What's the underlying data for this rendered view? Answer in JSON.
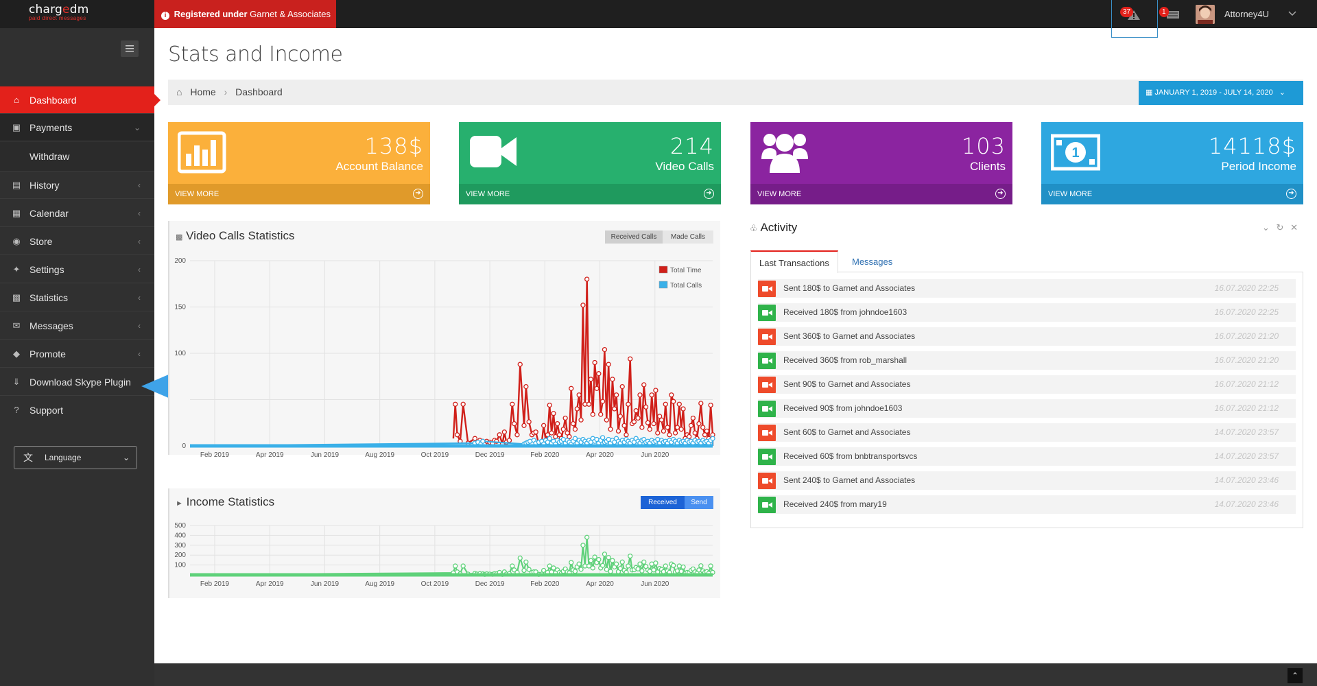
{
  "app": {
    "logo_text_a": "charg",
    "logo_text_accent": "e",
    "logo_text_b": "dm",
    "logo_tagline": "paid direct messages",
    "registered_prefix": "Registered under",
    "registered_org": "Garnet & Associates",
    "notifications_count": "37",
    "messages_count": "1",
    "user_name": "Attorney4U"
  },
  "sidebar": {
    "items": [
      {
        "label": "Dashboard",
        "icon": "home-icon"
      },
      {
        "label": "Payments",
        "icon": "money-icon"
      },
      {
        "label": "Withdraw"
      },
      {
        "label": "History",
        "icon": "book-icon"
      },
      {
        "label": "Calendar",
        "icon": "calendar-icon"
      },
      {
        "label": "Store",
        "icon": "play-circle-icon"
      },
      {
        "label": "Settings",
        "icon": "wrench-icon"
      },
      {
        "label": "Statistics",
        "icon": "bar-chart-icon"
      },
      {
        "label": "Messages",
        "icon": "envelope-icon"
      },
      {
        "label": "Promote",
        "icon": "camera-icon"
      },
      {
        "label": "Download Skype Plugin",
        "icon": "download-icon"
      },
      {
        "label": "Support",
        "icon": "question-icon"
      }
    ],
    "language_label": "Language"
  },
  "page": {
    "title": "Stats and Income",
    "breadcrumb": [
      "Home",
      "Dashboard"
    ],
    "date_range": "JANUARY 1, 2019 - JULY 14, 2020"
  },
  "tiles": [
    {
      "value": "138$",
      "label": "Account Balance",
      "footer": "VIEW MORE",
      "color": "#fbb03b",
      "footer_color": "#e09a2a",
      "icon": "bar-chart-icon"
    },
    {
      "value": "214",
      "label": "Video Calls",
      "footer": "VIEW MORE",
      "color": "#27b06e",
      "footer_color": "#1f9a5e",
      "icon": "video-camera-icon"
    },
    {
      "value": "103",
      "label": "Clients",
      "footer": "VIEW MORE",
      "color": "#8b24a0",
      "footer_color": "#761d89",
      "icon": "users-icon"
    },
    {
      "value": "14118$",
      "label": "Period Income",
      "footer": "VIEW MORE",
      "color": "#2ea7e0",
      "footer_color": "#2090c6",
      "icon": "dollar-bill-icon"
    }
  ],
  "video_calls_chart": {
    "title": "Video Calls Statistics",
    "toggle": [
      "Received Calls",
      "Made Calls"
    ],
    "legend": [
      "Total Time",
      "Total Calls"
    ]
  },
  "income_chart": {
    "title": "Income Statistics",
    "toggle": [
      "Received",
      "Send"
    ]
  },
  "activity": {
    "title": "Activity",
    "tabs": [
      "Last Transactions",
      "Messages"
    ],
    "rows": [
      {
        "text": "Sent 180$ to Garnet and Associates",
        "time": "16.07.2020 22:25",
        "type": "sent"
      },
      {
        "text": "Received 180$ from johndoe1603",
        "time": "16.07.2020 22:25",
        "type": "received"
      },
      {
        "text": "Sent 360$ to Garnet and Associates",
        "time": "16.07.2020 21:20",
        "type": "sent"
      },
      {
        "text": "Received 360$ from rob_marshall",
        "time": "16.07.2020 21:20",
        "type": "received"
      },
      {
        "text": "Sent 90$ to Garnet and Associates",
        "time": "16.07.2020 21:12",
        "type": "sent"
      },
      {
        "text": "Received 90$ from johndoe1603",
        "time": "16.07.2020 21:12",
        "type": "received"
      },
      {
        "text": "Sent 60$ to Garnet and Associates",
        "time": "14.07.2020 23:57",
        "type": "sent"
      },
      {
        "text": "Received 60$ from bnbtransportsvcs",
        "time": "14.07.2020 23:57",
        "type": "received"
      },
      {
        "text": "Sent 240$ to Garnet and Associates",
        "time": "14.07.2020 23:46",
        "type": "sent"
      },
      {
        "text": "Received 240$ from mary19",
        "time": "14.07.2020 23:46",
        "type": "received"
      }
    ]
  },
  "colors": {
    "sent": "#ee4b2b",
    "received": "#2fb34a",
    "total_time": "#d0201a",
    "total_calls": "#3ab0e8",
    "income": "#5fd17a",
    "accent": "#e3211b",
    "arrow": "#3fa3e8"
  },
  "chart_data": [
    {
      "type": "line",
      "title": "Video Calls Statistics",
      "x_ticks": [
        "Feb 2019",
        "Apr 2019",
        "Jun 2019",
        "Aug 2019",
        "Oct 2019",
        "Dec 2019",
        "Feb 2020",
        "Apr 2020",
        "Jun 2020"
      ],
      "ylim": [
        0,
        200
      ],
      "y_ticks": [
        0,
        50,
        100,
        150,
        200
      ],
      "y_tick_labels": [
        "0",
        "",
        "100",
        "150",
        "200"
      ],
      "legend": [
        "Total Time",
        "Total Calls"
      ],
      "grid": true,
      "series": [
        {
          "name": "Total Time",
          "x": [
            268,
            270,
            272,
            275,
            278,
            283,
            290,
            292,
            295,
            298,
            300,
            302,
            305,
            308,
            310,
            312,
            315,
            318,
            320,
            322,
            325,
            328,
            330,
            333,
            336,
            340,
            342,
            345,
            348,
            350,
            352,
            355,
            358,
            360,
            362,
            364,
            366,
            368,
            370,
            372,
            374,
            376,
            378,
            380,
            382,
            384,
            386,
            388,
            390,
            392,
            394,
            396,
            398,
            400,
            402,
            404,
            406,
            408,
            410,
            412,
            414,
            416,
            418,
            420,
            422,
            424,
            426,
            428,
            430,
            432,
            434,
            436,
            438,
            440,
            442,
            444,
            446,
            448,
            450,
            452,
            454,
            456,
            458,
            460,
            462,
            464,
            466,
            468,
            470,
            472,
            474,
            476,
            478,
            480,
            482,
            484,
            486,
            488,
            490,
            492,
            494,
            496,
            498,
            500,
            502,
            504,
            506,
            508,
            510,
            512,
            514,
            516,
            518,
            520,
            522,
            524,
            526,
            528,
            530,
            532
          ],
          "values": [
            8,
            45,
            12,
            5,
            45,
            3,
            8,
            4,
            6,
            5,
            2,
            5,
            4,
            3,
            6,
            5,
            12,
            2,
            15,
            4,
            6,
            45,
            24,
            12,
            88,
            22,
            64,
            26,
            12,
            14,
            15,
            2,
            4,
            22,
            6,
            12,
            44,
            14,
            35,
            10,
            24,
            12,
            8,
            18,
            30,
            14,
            10,
            62,
            24,
            18,
            40,
            55,
            28,
            152,
            45,
            180,
            45,
            72,
            34,
            90,
            62,
            78,
            34,
            48,
            104,
            28,
            88,
            18,
            72,
            40,
            55,
            16,
            32,
            64,
            22,
            12,
            45,
            94,
            24,
            26,
            38,
            30,
            55,
            20,
            66,
            42,
            25,
            18,
            55,
            24,
            60,
            14,
            32,
            28,
            16,
            45,
            20,
            12,
            55,
            48,
            14,
            20,
            45,
            18,
            40,
            8,
            12,
            10,
            22,
            30,
            14,
            8,
            24,
            46,
            20,
            12,
            16,
            8,
            44,
            12
          ]
        },
        {
          "name": "Total Calls",
          "x": [
            0,
            290,
            293,
            296,
            298,
            340,
            342,
            344,
            346,
            350,
            352,
            355,
            358,
            360,
            362,
            364,
            366,
            368,
            370,
            372,
            374,
            376,
            378,
            380,
            382,
            384,
            386,
            388,
            390,
            392,
            394,
            396,
            398,
            400,
            402,
            404,
            406,
            408,
            410,
            412,
            414,
            416,
            418,
            420,
            422,
            424,
            426,
            428,
            430,
            432,
            434,
            436,
            438,
            440,
            442,
            444,
            446,
            448,
            450,
            452,
            454,
            456,
            458,
            460,
            462,
            464,
            466,
            468,
            470,
            472,
            474,
            476,
            478,
            480,
            482,
            484,
            486,
            488,
            490,
            492,
            494,
            496,
            498,
            500,
            502,
            504,
            506,
            508,
            510,
            512,
            514,
            516,
            518,
            520,
            522,
            524,
            526,
            528,
            530,
            532
          ],
          "values": [
            0,
            3,
            4,
            2,
            5,
            2,
            3,
            4,
            5,
            6,
            3,
            4,
            5,
            2,
            6,
            4,
            8,
            3,
            5,
            2,
            6,
            4,
            5,
            7,
            3,
            6,
            4,
            2,
            5,
            8,
            3,
            6,
            4,
            7,
            5,
            3,
            6,
            4,
            8,
            5,
            7,
            3,
            6,
            9,
            4,
            5,
            7,
            3,
            6,
            4,
            8,
            5,
            3,
            6,
            4,
            7,
            5,
            3,
            6,
            4,
            8,
            5,
            3,
            6,
            7,
            4,
            5,
            3,
            6,
            4,
            5,
            7,
            3,
            6,
            4,
            5,
            3,
            6,
            4,
            7,
            5,
            3,
            6,
            4,
            5,
            3,
            6,
            4,
            5,
            3,
            6,
            4,
            5,
            3,
            6,
            4,
            5,
            3,
            6,
            8
          ]
        }
      ]
    },
    {
      "type": "line",
      "title": "Income Statistics",
      "x_ticks": [
        "Feb 2019",
        "Apr 2019",
        "Jun 2019",
        "Aug 2019",
        "Oct 2019",
        "Dec 2019",
        "Feb 2020",
        "Apr 2020",
        "Jun 2020"
      ],
      "ylim": [
        0,
        500
      ],
      "y_ticks": [
        0,
        100,
        200,
        300,
        400,
        500
      ],
      "y_tick_labels": [
        "",
        "100",
        "200",
        "300",
        "400",
        "500"
      ],
      "grid": true,
      "series": [
        {
          "name": "Received",
          "x": [
            0,
            268,
            270,
            272,
            275,
            278,
            283,
            290,
            292,
            295,
            298,
            300,
            302,
            305,
            308,
            310,
            312,
            315,
            318,
            320,
            322,
            325,
            328,
            330,
            333,
            336,
            340,
            342,
            345,
            348,
            350,
            352,
            355,
            358,
            360,
            362,
            364,
            366,
            368,
            370,
            372,
            374,
            376,
            378,
            380,
            382,
            384,
            386,
            388,
            390,
            392,
            394,
            396,
            398,
            400,
            402,
            404,
            406,
            408,
            410,
            412,
            414,
            416,
            418,
            420,
            422,
            424,
            426,
            428,
            430,
            432,
            434,
            436,
            438,
            440,
            442,
            444,
            446,
            448,
            450,
            452,
            454,
            456,
            458,
            460,
            462,
            464,
            466,
            468,
            470,
            472,
            474,
            476,
            478,
            480,
            482,
            484,
            486,
            488,
            490,
            492,
            494,
            496,
            498,
            500,
            502,
            504,
            506,
            508,
            510,
            512,
            514,
            516,
            518,
            520,
            522,
            524,
            526,
            528,
            530,
            532
          ],
          "values": [
            0,
            20,
            90,
            30,
            10,
            90,
            8,
            15,
            8,
            12,
            10,
            5,
            10,
            8,
            6,
            12,
            10,
            25,
            5,
            30,
            8,
            12,
            90,
            50,
            25,
            170,
            45,
            130,
            55,
            25,
            30,
            30,
            5,
            8,
            45,
            12,
            25,
            90,
            30,
            70,
            20,
            50,
            25,
            16,
            36,
            60,
            30,
            20,
            125,
            50,
            36,
            80,
            110,
            56,
            300,
            90,
            380,
            90,
            145,
            70,
            180,
            125,
            155,
            70,
            95,
            210,
            55,
            175,
            35,
            145,
            80,
            110,
            32,
            65,
            130,
            45,
            25,
            90,
            190,
            50,
            52,
            75,
            60,
            110,
            40,
            130,
            85,
            50,
            36,
            110,
            50,
            120,
            30,
            65,
            55,
            32,
            90,
            40,
            25,
            110,
            95,
            30,
            40,
            90,
            36,
            80,
            16,
            25,
            20,
            45,
            60,
            30,
            16,
            50,
            92,
            40,
            25,
            32,
            16,
            90,
            25
          ]
        }
      ]
    }
  ]
}
